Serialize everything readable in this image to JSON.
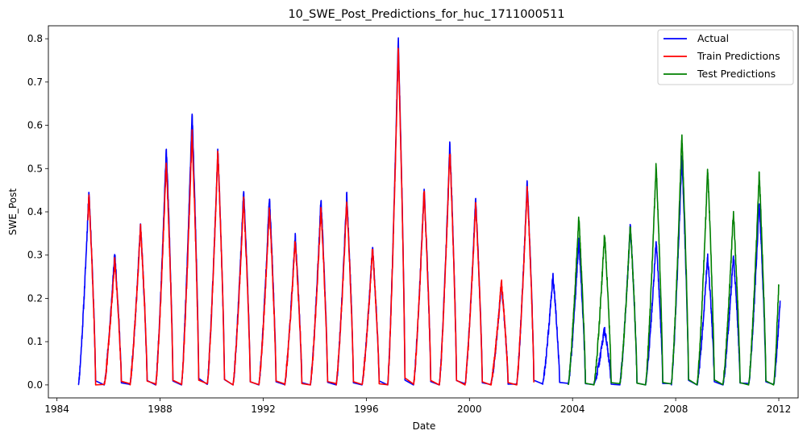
{
  "chart_data": {
    "type": "line",
    "title": "10_SWE_Post_Predictions_for_huc_1711000511",
    "xlabel": "Date",
    "ylabel": "SWE_Post",
    "xlim": [
      "1983-09",
      "2012-10"
    ],
    "ylim": [
      -0.03,
      0.83
    ],
    "x_ticks": [
      "1984",
      "1988",
      "1992",
      "1996",
      "2000",
      "2004",
      "2008",
      "2012"
    ],
    "y_ticks": [
      "0.0",
      "0.1",
      "0.2",
      "0.3",
      "0.4",
      "0.5",
      "0.6",
      "0.7",
      "0.8"
    ],
    "grid": false,
    "legend_position": "top-right",
    "series": [
      {
        "name": "Actual",
        "color": "#0000ff",
        "annual_peaks": [
          {
            "season": "1985",
            "peak": 0.45
          },
          {
            "season": "1986",
            "peak": 0.305
          },
          {
            "season": "1987",
            "peak": 0.37
          },
          {
            "season": "1988",
            "peak": 0.55
          },
          {
            "season": "1989",
            "peak": 0.63
          },
          {
            "season": "1990",
            "peak": 0.545
          },
          {
            "season": "1991",
            "peak": 0.45
          },
          {
            "season": "1992",
            "peak": 0.435
          },
          {
            "season": "1993",
            "peak": 0.345
          },
          {
            "season": "1994",
            "peak": 0.43
          },
          {
            "season": "1995",
            "peak": 0.44
          },
          {
            "season": "1996",
            "peak": 0.32
          },
          {
            "season": "1997",
            "peak": 0.8
          },
          {
            "season": "1998",
            "peak": 0.455
          },
          {
            "season": "1999",
            "peak": 0.56
          },
          {
            "season": "2000",
            "peak": 0.43
          },
          {
            "season": "2001",
            "peak": 0.235
          },
          {
            "season": "2002",
            "peak": 0.47
          },
          {
            "season": "2003",
            "peak": 0.255
          },
          {
            "season": "2004",
            "peak": 0.335
          },
          {
            "season": "2005",
            "peak": 0.13
          },
          {
            "season": "2006",
            "peak": 0.37
          },
          {
            "season": "2007",
            "peak": 0.335
          },
          {
            "season": "2008",
            "peak": 0.53
          },
          {
            "season": "2009",
            "peak": 0.3
          },
          {
            "season": "2010",
            "peak": 0.3
          },
          {
            "season": "2011",
            "peak": 0.425
          },
          {
            "season": "2012 (partial)",
            "peak": 0.19
          }
        ]
      },
      {
        "name": "Train Predictions",
        "color": "#ff0000",
        "annual_peaks": [
          {
            "season": "1985",
            "peak": 0.44
          },
          {
            "season": "1986",
            "peak": 0.29
          },
          {
            "season": "1987",
            "peak": 0.37
          },
          {
            "season": "1988",
            "peak": 0.52
          },
          {
            "season": "1989",
            "peak": 0.585
          },
          {
            "season": "1990",
            "peak": 0.54
          },
          {
            "season": "1991",
            "peak": 0.43
          },
          {
            "season": "1992",
            "peak": 0.41
          },
          {
            "season": "1993",
            "peak": 0.335
          },
          {
            "season": "1994",
            "peak": 0.41
          },
          {
            "season": "1995",
            "peak": 0.425
          },
          {
            "season": "1996",
            "peak": 0.315
          },
          {
            "season": "1997",
            "peak": 0.78
          },
          {
            "season": "1998",
            "peak": 0.45
          },
          {
            "season": "1999",
            "peak": 0.545
          },
          {
            "season": "2000",
            "peak": 0.42
          },
          {
            "season": "2001",
            "peak": 0.24
          },
          {
            "season": "2002",
            "peak": 0.46
          }
        ]
      },
      {
        "name": "Test Predictions",
        "color": "#008000",
        "annual_peaks": [
          {
            "season": "2004",
            "peak": 0.39
          },
          {
            "season": "2005",
            "peak": 0.35
          },
          {
            "season": "2006",
            "peak": 0.37
          },
          {
            "season": "2007",
            "peak": 0.51
          },
          {
            "season": "2008",
            "peak": 0.58
          },
          {
            "season": "2009",
            "peak": 0.5
          },
          {
            "season": "2010",
            "peak": 0.4
          },
          {
            "season": "2011",
            "peak": 0.49
          },
          {
            "season": "2012 (partial)",
            "peak": 0.235
          }
        ]
      }
    ]
  }
}
